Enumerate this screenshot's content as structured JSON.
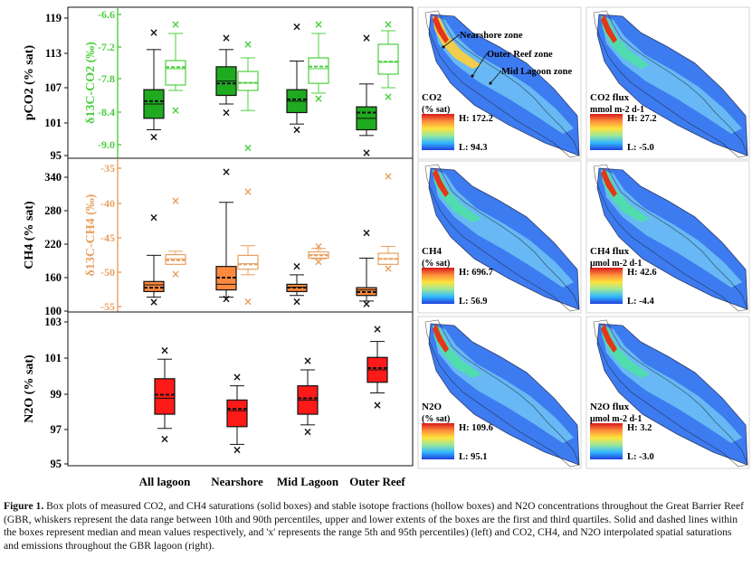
{
  "chart_data": [
    {
      "type": "box",
      "panel": "co2",
      "ylabel_left": "pCO2 (% sat)",
      "ylabel_right": "δ13C-CO2 (‰)",
      "left_ticks": [
        "119",
        "113",
        "107",
        "101",
        "95"
      ],
      "right_ticks": [
        "-6.6",
        "-7.2",
        "-7.8",
        "-8.4",
        "-9.0"
      ],
      "ylim_left": [
        95,
        120
      ],
      "ylim_right": [
        -9.3,
        -6.6
      ],
      "categories": [
        "All lagoon",
        "Nearshore",
        "Mid Lagoon",
        "Outer Reef"
      ],
      "series": [
        {
          "name": "pCO2",
          "style": "solid",
          "color": "#1faa1f",
          "boxes": [
            {
              "p5": 98.2,
              "p10": 99.5,
              "q1": 101.5,
              "median": 104.0,
              "mean": 104.5,
              "q3": 106.5,
              "p90": 113.5,
              "p95": 116.5
            },
            {
              "p5": 102.5,
              "p10": 104.0,
              "q1": 105.5,
              "median": 108.0,
              "mean": 107.6,
              "q3": 110.5,
              "p90": 113.5,
              "p95": 115.5
            },
            {
              "p5": 99.5,
              "p10": 100.5,
              "q1": 102.5,
              "median": 104.5,
              "mean": 104.8,
              "q3": 106.5,
              "p90": 111.5,
              "p95": 117.5
            },
            {
              "p5": 95.5,
              "p10": 98.5,
              "q1": 99.5,
              "median": 101.5,
              "mean": 102.5,
              "q3": 103.5,
              "p90": 107.5,
              "p95": 115.5
            }
          ]
        },
        {
          "name": "δ13C-CO2",
          "style": "hollow",
          "color": "#4ccf3f",
          "boxes": [
            {
              "p5": -8.37,
              "p10": -8.0,
              "q1": -7.9,
              "median": -7.6,
              "mean": -7.57,
              "q3": -7.45,
              "p90": -6.95,
              "p95": -6.78
            },
            {
              "p5": -9.06,
              "p10": -8.37,
              "q1": -8.0,
              "median": -7.86,
              "mean": -7.86,
              "q3": -7.65,
              "p90": -7.4,
              "p95": -7.15
            },
            {
              "p5": -8.15,
              "p10": -8.05,
              "q1": -7.87,
              "median": -7.6,
              "mean": -7.56,
              "q3": -7.4,
              "p90": -6.95,
              "p95": -6.78
            },
            {
              "p5": -8.12,
              "p10": -7.95,
              "q1": -7.7,
              "median": -7.48,
              "mean": -7.47,
              "q3": -7.15,
              "p90": -6.9,
              "p95": -6.78
            }
          ]
        }
      ]
    },
    {
      "type": "box",
      "panel": "ch4",
      "ylabel_left": "CH4 (% sat)",
      "ylabel_right": "δ13C-CH4 (‰)",
      "left_ticks": [
        "340",
        "280",
        "220",
        "160",
        "100"
      ],
      "right_ticks": [
        "-35",
        "-40",
        "-45",
        "-50",
        "-55"
      ],
      "ylim_left": [
        100,
        355
      ],
      "ylim_right": [
        -55,
        -35
      ],
      "categories": [
        "All lagoon",
        "Nearshore",
        "Mid Lagoon",
        "Outer Reef"
      ],
      "series": [
        {
          "name": "CH4",
          "style": "solid",
          "color": "#ff8a3d",
          "boxes": [
            {
              "p5": 116,
              "p10": 125,
              "q1": 135,
              "median": 147,
              "mean": 142,
              "q3": 153,
              "p90": 200,
              "p95": 268
            },
            {
              "p5": 122,
              "p10": 125,
              "q1": 138,
              "median": 148,
              "mean": 160,
              "q3": 180,
              "p90": 295,
              "p95": 350
            },
            {
              "p5": 117,
              "p10": 128,
              "q1": 135,
              "median": 143,
              "mean": 142,
              "q3": 148,
              "p90": 165,
              "p95": 180
            },
            {
              "p5": 113,
              "p10": 118,
              "q1": 128,
              "median": 138,
              "mean": 134,
              "q3": 142,
              "p90": 195,
              "p95": 240
            }
          ]
        },
        {
          "name": "δ13C-CH4",
          "style": "hollow",
          "color": "#e8a060",
          "boxes": [
            {
              "p5": -50.3,
              "p10": -48.4,
              "q1": -48.9,
              "median": -48.1,
              "mean": -48.3,
              "q3": -47.5,
              "p90": -47.0,
              "p95": -39.7
            },
            {
              "p5": -54.3,
              "p10": -50.4,
              "q1": -49.6,
              "median": -48.8,
              "mean": -48.9,
              "q3": -47.6,
              "p90": -46.2,
              "p95": -38.4
            },
            {
              "p5": -48.5,
              "p10": -48.1,
              "q1": -48.0,
              "median": -47.5,
              "mean": -47.6,
              "q3": -47.1,
              "p90": -46.6,
              "p95": -46.3
            },
            {
              "p5": -49.5,
              "p10": -48.7,
              "q1": -48.9,
              "median": -48.1,
              "mean": -48.1,
              "q3": -47.3,
              "p90": -46.3,
              "p95": -36.2
            }
          ]
        }
      ]
    },
    {
      "type": "box",
      "panel": "n2o",
      "ylabel_left": "N2O (% sat)",
      "left_ticks": [
        "103",
        "101",
        "99",
        "97",
        "95"
      ],
      "ylim_left": [
        95,
        103
      ],
      "categories": [
        "All lagoon",
        "Nearshore",
        "Mid Lagoon",
        "Outer Reef"
      ],
      "series": [
        {
          "name": "N2O",
          "style": "solid",
          "color": "#ff1a1a",
          "boxes": [
            {
              "p5": 96.4,
              "p10": 97.0,
              "q1": 97.8,
              "median": 98.7,
              "mean": 98.9,
              "q3": 99.8,
              "p90": 100.9,
              "p95": 101.4
            },
            {
              "p5": 95.8,
              "p10": 96.1,
              "q1": 97.1,
              "median": 98.0,
              "mean": 98.1,
              "q3": 98.6,
              "p90": 99.4,
              "p95": 99.9
            },
            {
              "p5": 96.8,
              "p10": 97.2,
              "q1": 97.8,
              "median": 98.6,
              "mean": 98.7,
              "q3": 99.4,
              "p90": 100.3,
              "p95": 100.8
            },
            {
              "p5": 98.3,
              "p10": 99.0,
              "q1": 99.6,
              "median": 100.3,
              "mean": 100.4,
              "q3": 101.0,
              "p90": 101.9,
              "p95": 102.6
            }
          ]
        }
      ]
    }
  ],
  "maps": [
    {
      "title": "CO2",
      "unit": "(% sat)",
      "high": "H: 172.2",
      "low": "L: 94.3"
    },
    {
      "title": "CO2 flux",
      "unit": "mmol m-2 d-1",
      "high": "H: 27.2",
      "low": "L: -5.0"
    },
    {
      "title": "CH4",
      "unit": "(% sat)",
      "high": "H: 696.7",
      "low": "L: 56.9"
    },
    {
      "title": "CH4 flux",
      "unit": "μmol m-2 d-1",
      "high": "H: 42.6",
      "low": "L: -4.4"
    },
    {
      "title": "N2O",
      "unit": "(% sat)",
      "high": "H: 109.6",
      "low": "L: 95.1"
    },
    {
      "title": "N2O flux",
      "unit": "μmol m-2 d-1",
      "high": "H: 3.2",
      "low": "L: -3.0"
    }
  ],
  "zones": [
    "Nearshore zone",
    "Outer Reef zone",
    "Mid Lagoon zone"
  ],
  "caption": {
    "label": "Figure 1.",
    "text": "Box plots of measured CO2, and CH4 saturations (solid boxes) and stable isotope fractions (hollow boxes) and N2O concentrations throughout the Great Barrier Reef (GBR, whiskers represent the data range between 10th and 90th percentiles, upper and lower extents of the boxes are the first and third quartiles. Solid and dashed lines within the boxes represent median and mean values respectively, and 'x' represents the range 5th and 95th percentiles) (left) and CO2, CH4, and N2O interpolated spatial saturations and emissions throughout the GBR lagoon (right)."
  },
  "colors": {
    "co2": "#1faa1f",
    "co2_iso": "#4ccf3f",
    "ch4": "#ff8a3d",
    "ch4_iso": "#e8a060",
    "n2o": "#ff1a1a"
  }
}
